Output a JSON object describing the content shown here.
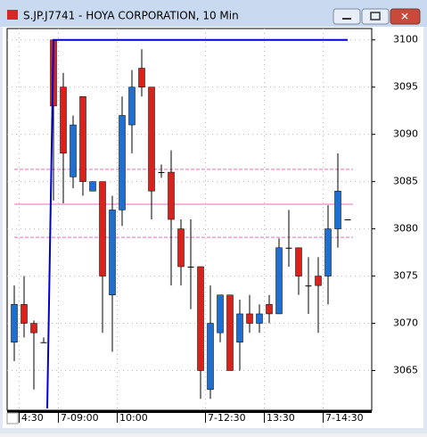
{
  "window_title": "S.JP.J7741 - HOYA CORPORATION, 10 Min",
  "chart_data": {
    "type": "candlestick",
    "categories": [
      null,
      "4:30",
      null,
      null,
      null,
      "7-09:00",
      null,
      null,
      null,
      null,
      null,
      "10:00",
      null,
      null,
      null,
      null,
      null,
      null,
      null,
      null,
      "7-12:30",
      null,
      null,
      null,
      null,
      null,
      "13:30",
      null,
      null,
      null,
      null,
      null,
      "7-14:30",
      null,
      null
    ],
    "open": [
      3068,
      3072,
      3070,
      3068,
      3100,
      3095,
      3085.5,
      3094,
      3084,
      3085,
      3073,
      3082,
      3091,
      3097,
      3095,
      3086,
      3086,
      3080,
      3076,
      3076,
      3063,
      3069,
      3073,
      3068,
      3071,
      3070,
      3072,
      3071,
      3078,
      3078,
      3074,
      3075,
      3075,
      3080,
      3081
    ],
    "high": [
      3074,
      3075,
      3070.3,
      3068.5,
      3100,
      3096.5,
      3092,
      3094,
      3085,
      3085,
      3083.5,
      3094,
      3096.8,
      3099,
      3095,
      3086.8,
      3088.3,
      3081,
      3081,
      3076,
      3074,
      3073,
      3073,
      3072.5,
      3073,
      3072,
      3073,
      3079,
      3082,
      3078,
      3077,
      3077,
      3082.5,
      3088,
      3081
    ],
    "low": [
      3066,
      3068.5,
      3063,
      3068,
      3083,
      3082.7,
      3084.3,
      3083.5,
      3084,
      3069,
      3067,
      3080.3,
      3088,
      3094,
      3081,
      3085.4,
      3074,
      3074,
      3071.5,
      3062,
      3062,
      3068,
      3065,
      3065,
      3069,
      3069,
      3070,
      3071,
      3076,
      3073,
      3071,
      3069,
      3072,
      3078,
      3081
    ],
    "close": [
      3072,
      3070,
      3069,
      3068,
      3093,
      3088,
      3091,
      3085,
      3085,
      3075,
      3082,
      3092,
      3095,
      3095,
      3084,
      3086,
      3081,
      3076,
      3076,
      3065,
      3070,
      3073,
      3065,
      3071,
      3070,
      3071,
      3071,
      3078,
      3078,
      3075,
      3074,
      3074,
      3080,
      3084,
      3081
    ],
    "up_color": "#1f6fd0",
    "down_color": "#d8221c",
    "line": {
      "color": "#0000c8",
      "values": [
        null,
        null,
        null,
        3061,
        3100,
        3100,
        3100,
        3100,
        3100,
        3100,
        3100,
        3100,
        3100,
        3100,
        3100,
        3100,
        3100,
        3100,
        3100,
        3100,
        3100,
        3100,
        3100,
        3100,
        3100,
        3100,
        3100,
        3100,
        3100,
        3100,
        3100,
        3100,
        3100,
        3100,
        3100
      ]
    },
    "hlines": [
      {
        "value": 3086.3,
        "style": "dashed",
        "color": "#e070c0"
      },
      {
        "value": 3082.6,
        "style": "solid",
        "color": "#ff9ad0"
      },
      {
        "value": 3079.1,
        "style": "dashed",
        "color": "#e070c0"
      }
    ],
    "ylim": [
      3060.8,
      3101.2
    ],
    "yticks": [
      3065,
      3070,
      3075,
      3080,
      3085,
      3090,
      3095,
      3100
    ],
    "grid": true
  }
}
